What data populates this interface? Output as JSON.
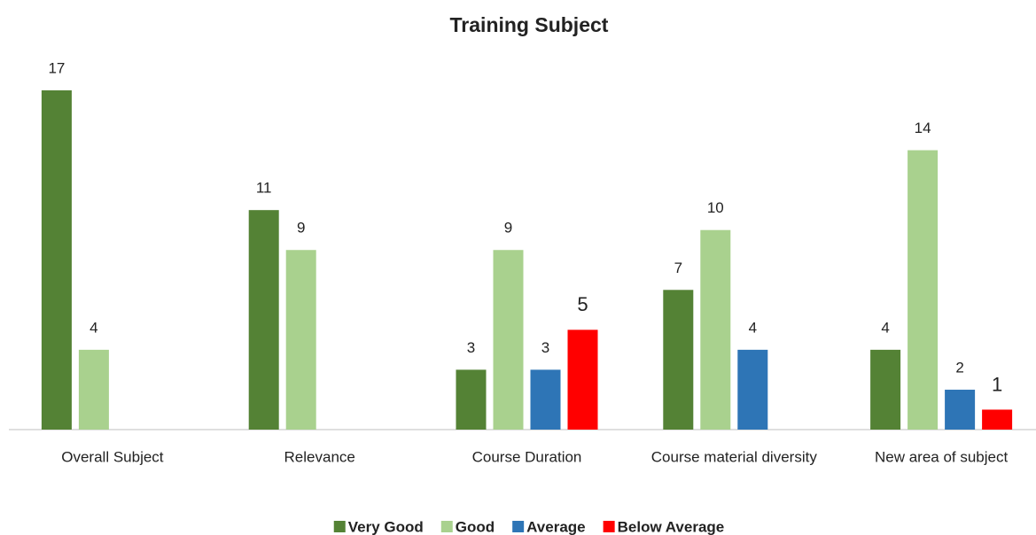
{
  "chart_data": {
    "type": "bar",
    "title": "Training Subject",
    "categories": [
      "Overall Subject",
      "Relevance",
      "Course Duration",
      "Course material diversity",
      "New area of subject"
    ],
    "series": [
      {
        "name": "Very Good",
        "color": "#548235",
        "values": [
          17,
          11,
          3,
          7,
          4
        ]
      },
      {
        "name": "Good",
        "color": "#a9d18e",
        "values": [
          4,
          9,
          9,
          10,
          14
        ]
      },
      {
        "name": "Average",
        "color": "#2e75b6",
        "values": [
          null,
          null,
          3,
          4,
          2
        ]
      },
      {
        "name": "Below Average",
        "color": "#ff0000",
        "values": [
          null,
          null,
          5,
          null,
          1
        ]
      }
    ],
    "legend": "bottom"
  }
}
